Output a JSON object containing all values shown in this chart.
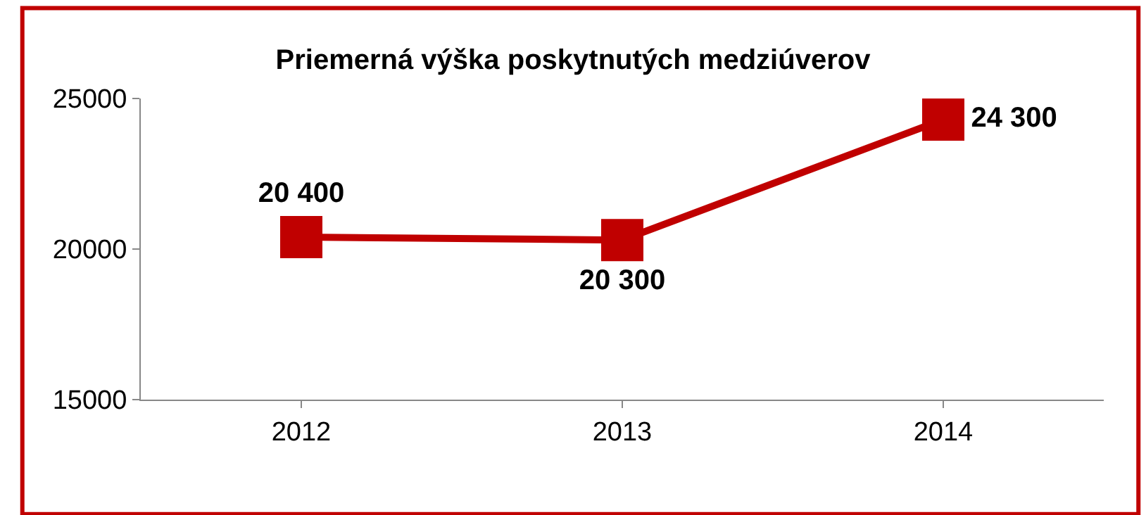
{
  "chart_data": {
    "type": "line",
    "title": "Priemerná výška poskytnutých medziúverov",
    "categories": [
      "2012",
      "2013",
      "2014"
    ],
    "series": [
      {
        "color": "#c00000",
        "values": [
          20400,
          20300,
          24300
        ],
        "value_labels": [
          "20 400",
          "20 300",
          "24 300"
        ]
      }
    ],
    "ylim": [
      15000,
      25000
    ],
    "yticks": [
      15000,
      20000,
      25000
    ],
    "grid": false,
    "marker": "square",
    "line_style": "solid"
  }
}
